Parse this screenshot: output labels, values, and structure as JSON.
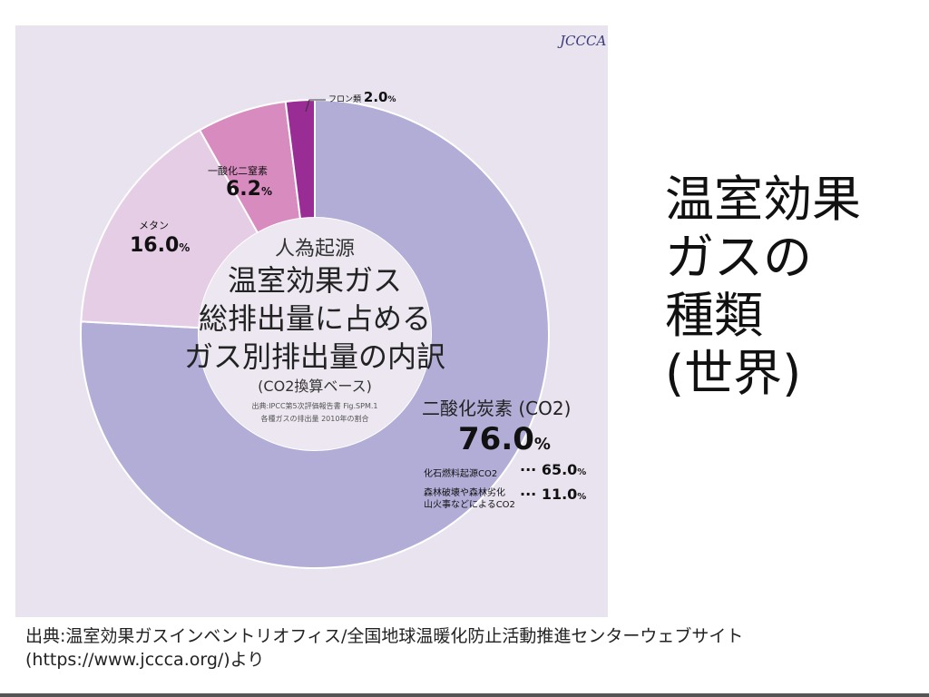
{
  "slide_title": [
    "温室効果",
    "ガスの",
    "種類",
    "(世界)"
  ],
  "footer": {
    "line1": "出典:温室効果ガスインベントリオフィス/全国地球温暖化防止活動推進センターウェブサイト",
    "line2": "(https://www.jccca.org/)より"
  },
  "logo": "JCCCA",
  "chart_data": {
    "type": "pie",
    "donut": true,
    "center_text": {
      "line0": "人為起源",
      "line1": "温室効果ガス",
      "line2": "総排出量に占める",
      "line3": "ガス別排出量の内訳",
      "line4": "(CO2換算ベース)",
      "source1": "出典:IPCC第5次評価報告書 Fig.SPM.1",
      "source2": "各種ガスの排出量 2010年の割合"
    },
    "slices": [
      {
        "name": "二酸化炭素 (CO2)",
        "value": 76.0,
        "label": "76.0",
        "color": "#b1add7"
      },
      {
        "name": "メタン",
        "value": 16.0,
        "label": "16.0",
        "color": "#e5cde6"
      },
      {
        "name": "一酸化二窒素",
        "value": 6.2,
        "label": "6.2",
        "color": "#d88bbf"
      },
      {
        "name": "フロン類",
        "value": 2.0,
        "label": "2.0",
        "color": "#9a2c95"
      }
    ],
    "unit": "%",
    "co2_breakdown": [
      {
        "name": "化石燃料起源CO2",
        "value": "65.0"
      },
      {
        "name": "森林破壊や森林劣化山火事などによるCO2",
        "name_l1": "森林破壊や森林劣化",
        "name_l2": "山火事などによるCO2",
        "value": "11.0"
      }
    ],
    "start": "top",
    "direction": "clockwise"
  }
}
